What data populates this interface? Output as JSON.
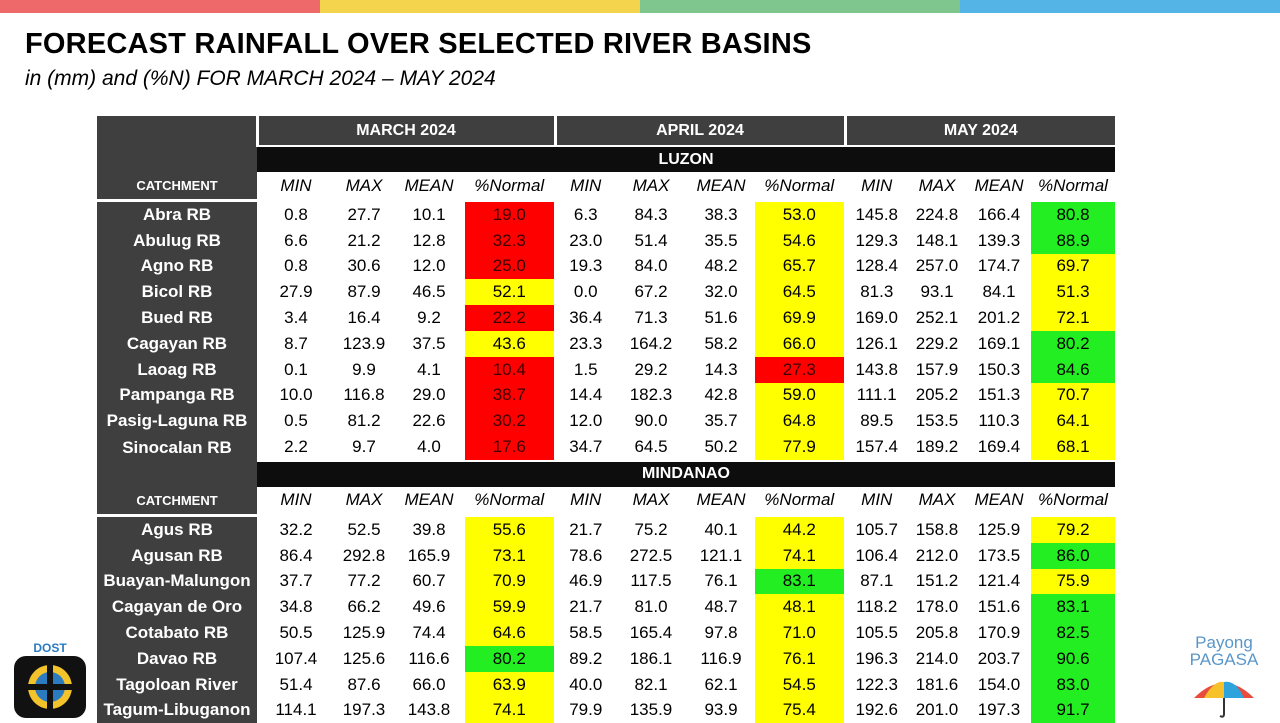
{
  "stripe_colors": [
    "#ee6a6a",
    "#f4d44c",
    "#7ec68e",
    "#55b4e6"
  ],
  "title": "FORECAST RAINFALL OVER SELECTED RIVER BASINS",
  "subtitle": "in (mm) and (%N) FOR  MARCH 2024 – MAY 2024",
  "months": [
    "MARCH 2024",
    "APRIL 2024",
    "MAY 2024"
  ],
  "catchment_label": "CATCHMENT",
  "columns": [
    "MIN",
    "MAX",
    "MEAN",
    "%Normal"
  ],
  "color_codes": {
    "red": "#ff0000",
    "yellow": "#ffff00",
    "green": "#22ee22"
  },
  "regions": [
    {
      "name": "LUZON",
      "rows": [
        {
          "basin": "Abra RB",
          "values": [
            [
              "0.8",
              "27.7",
              "10.1",
              "19.0",
              "red"
            ],
            [
              "6.3",
              "84.3",
              "38.3",
              "53.0",
              "yellow"
            ],
            [
              "145.8",
              "224.8",
              "166.4",
              "80.8",
              "green"
            ]
          ]
        },
        {
          "basin": "Abulug RB",
          "values": [
            [
              "6.6",
              "21.2",
              "12.8",
              "32.3",
              "red"
            ],
            [
              "23.0",
              "51.4",
              "35.5",
              "54.6",
              "yellow"
            ],
            [
              "129.3",
              "148.1",
              "139.3",
              "88.9",
              "green"
            ]
          ]
        },
        {
          "basin": "Agno RB",
          "values": [
            [
              "0.8",
              "30.6",
              "12.0",
              "25.0",
              "red"
            ],
            [
              "19.3",
              "84.0",
              "48.2",
              "65.7",
              "yellow"
            ],
            [
              "128.4",
              "257.0",
              "174.7",
              "69.7",
              "yellow"
            ]
          ]
        },
        {
          "basin": "Bicol RB",
          "values": [
            [
              "27.9",
              "87.9",
              "46.5",
              "52.1",
              "yellow"
            ],
            [
              "0.0",
              "67.2",
              "32.0",
              "64.5",
              "yellow"
            ],
            [
              "81.3",
              "93.1",
              "84.1",
              "51.3",
              "yellow"
            ]
          ]
        },
        {
          "basin": "Bued RB",
          "values": [
            [
              "3.4",
              "16.4",
              "9.2",
              "22.2",
              "red"
            ],
            [
              "36.4",
              "71.3",
              "51.6",
              "69.9",
              "yellow"
            ],
            [
              "169.0",
              "252.1",
              "201.2",
              "72.1",
              "yellow"
            ]
          ]
        },
        {
          "basin": "Cagayan RB",
          "values": [
            [
              "8.7",
              "123.9",
              "37.5",
              "43.6",
              "yellow"
            ],
            [
              "23.3",
              "164.2",
              "58.2",
              "66.0",
              "yellow"
            ],
            [
              "126.1",
              "229.2",
              "169.1",
              "80.2",
              "green"
            ]
          ]
        },
        {
          "basin": "Laoag RB",
          "values": [
            [
              "0.1",
              "9.9",
              "4.1",
              "10.4",
              "red"
            ],
            [
              "1.5",
              "29.2",
              "14.3",
              "27.3",
              "red"
            ],
            [
              "143.8",
              "157.9",
              "150.3",
              "84.6",
              "green"
            ]
          ]
        },
        {
          "basin": "Pampanga RB",
          "values": [
            [
              "10.0",
              "116.8",
              "29.0",
              "38.7",
              "red"
            ],
            [
              "14.4",
              "182.3",
              "42.8",
              "59.0",
              "yellow"
            ],
            [
              "111.1",
              "205.2",
              "151.3",
              "70.7",
              "yellow"
            ]
          ]
        },
        {
          "basin": "Pasig-Laguna RB",
          "values": [
            [
              "0.5",
              "81.2",
              "22.6",
              "30.2",
              "red"
            ],
            [
              "12.0",
              "90.0",
              "35.7",
              "64.8",
              "yellow"
            ],
            [
              "89.5",
              "153.5",
              "110.3",
              "64.1",
              "yellow"
            ]
          ]
        },
        {
          "basin": "Sinocalan RB",
          "values": [
            [
              "2.2",
              "9.7",
              "4.0",
              "17.6",
              "red"
            ],
            [
              "34.7",
              "64.5",
              "50.2",
              "77.9",
              "yellow"
            ],
            [
              "157.4",
              "189.2",
              "169.4",
              "68.1",
              "yellow"
            ]
          ]
        }
      ]
    },
    {
      "name": "MINDANAO",
      "rows": [
        {
          "basin": "Agus RB",
          "values": [
            [
              "32.2",
              "52.5",
              "39.8",
              "55.6",
              "yellow"
            ],
            [
              "21.7",
              "75.2",
              "40.1",
              "44.2",
              "yellow"
            ],
            [
              "105.7",
              "158.8",
              "125.9",
              "79.2",
              "yellow"
            ]
          ]
        },
        {
          "basin": "Agusan RB",
          "values": [
            [
              "86.4",
              "292.8",
              "165.9",
              "73.1",
              "yellow"
            ],
            [
              "78.6",
              "272.5",
              "121.1",
              "74.1",
              "yellow"
            ],
            [
              "106.4",
              "212.0",
              "173.5",
              "86.0",
              "green"
            ]
          ]
        },
        {
          "basin": "Buayan-Malungon",
          "values": [
            [
              "37.7",
              "77.2",
              "60.7",
              "70.9",
              "yellow"
            ],
            [
              "46.9",
              "117.5",
              "76.1",
              "83.1",
              "green"
            ],
            [
              "87.1",
              "151.2",
              "121.4",
              "75.9",
              "yellow"
            ]
          ]
        },
        {
          "basin": "Cagayan de Oro",
          "values": [
            [
              "34.8",
              "66.2",
              "49.6",
              "59.9",
              "yellow"
            ],
            [
              "21.7",
              "81.0",
              "48.7",
              "48.1",
              "yellow"
            ],
            [
              "118.2",
              "178.0",
              "151.6",
              "83.1",
              "green"
            ]
          ]
        },
        {
          "basin": "Cotabato RB",
          "values": [
            [
              "50.5",
              "125.9",
              "74.4",
              "64.6",
              "yellow"
            ],
            [
              "58.5",
              "165.4",
              "97.8",
              "71.0",
              "yellow"
            ],
            [
              "105.5",
              "205.8",
              "170.9",
              "82.5",
              "green"
            ]
          ]
        },
        {
          "basin": "Davao RB",
          "values": [
            [
              "107.4",
              "125.6",
              "116.6",
              "80.2",
              "green"
            ],
            [
              "89.2",
              "186.1",
              "116.9",
              "76.1",
              "yellow"
            ],
            [
              "196.3",
              "214.0",
              "203.7",
              "90.6",
              "green"
            ]
          ]
        },
        {
          "basin": "Tagoloan River",
          "values": [
            [
              "51.4",
              "87.6",
              "66.0",
              "63.9",
              "yellow"
            ],
            [
              "40.0",
              "82.1",
              "62.1",
              "54.5",
              "yellow"
            ],
            [
              "122.3",
              "181.6",
              "154.0",
              "83.0",
              "green"
            ]
          ]
        },
        {
          "basin": "Tagum-Libuganon",
          "values": [
            [
              "114.1",
              "197.3",
              "143.8",
              "74.1",
              "yellow"
            ],
            [
              "79.9",
              "135.9",
              "93.9",
              "75.4",
              "yellow"
            ],
            [
              "192.6",
              "201.0",
              "197.3",
              "91.7",
              "green"
            ]
          ]
        }
      ]
    }
  ],
  "logos": {
    "left": {
      "text": "DOST"
    },
    "right": {
      "line1": "Payong",
      "line2": "PAGASA"
    }
  }
}
